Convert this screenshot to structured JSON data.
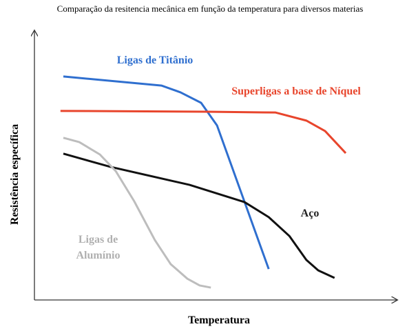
{
  "chart_data": {
    "type": "line",
    "title": "Comparação da resitencia mecânica em função da temperatura para diversos materias",
    "xlabel": "Temperatura",
    "ylabel": "Resistência específica",
    "xlim": [
      0,
      100
    ],
    "ylim": [
      0,
      100
    ],
    "series": [
      {
        "name": "Ligas de Titânio",
        "color": "#2f6fcf",
        "x": [
          8,
          35.2,
          40.4,
          46.1,
          50.5,
          64.8
        ],
        "values": [
          83.1,
          79.7,
          77.2,
          73.3,
          64.9,
          11.5
        ]
      },
      {
        "name": "Superligas a base de Níquel",
        "color": "#e8452c",
        "x": [
          7.2,
          47.6,
          66.7,
          75.2,
          80.4,
          86.1
        ],
        "values": [
          70.3,
          70,
          69.7,
          66.7,
          62.8,
          54.6
        ]
      },
      {
        "name": "Aço",
        "color": "#111111",
        "x": [
          8,
          21,
          42.9,
          58.1,
          64.8,
          70.5,
          75.2,
          78.5,
          83
        ],
        "values": [
          54.4,
          49.5,
          42.8,
          36.4,
          30.8,
          23.8,
          14.9,
          11,
          8.2
        ]
      },
      {
        "name": "Ligas de Alumínio",
        "color": "#bdbdbd",
        "x": [
          8,
          12.4,
          18.1,
          22.5,
          27.6,
          33.3,
          37.7,
          42.3,
          45.7,
          48.8
        ],
        "values": [
          60.3,
          58.7,
          54.1,
          47.9,
          36.7,
          22.3,
          13.3,
          7.9,
          5.4,
          4.6
        ]
      }
    ]
  }
}
